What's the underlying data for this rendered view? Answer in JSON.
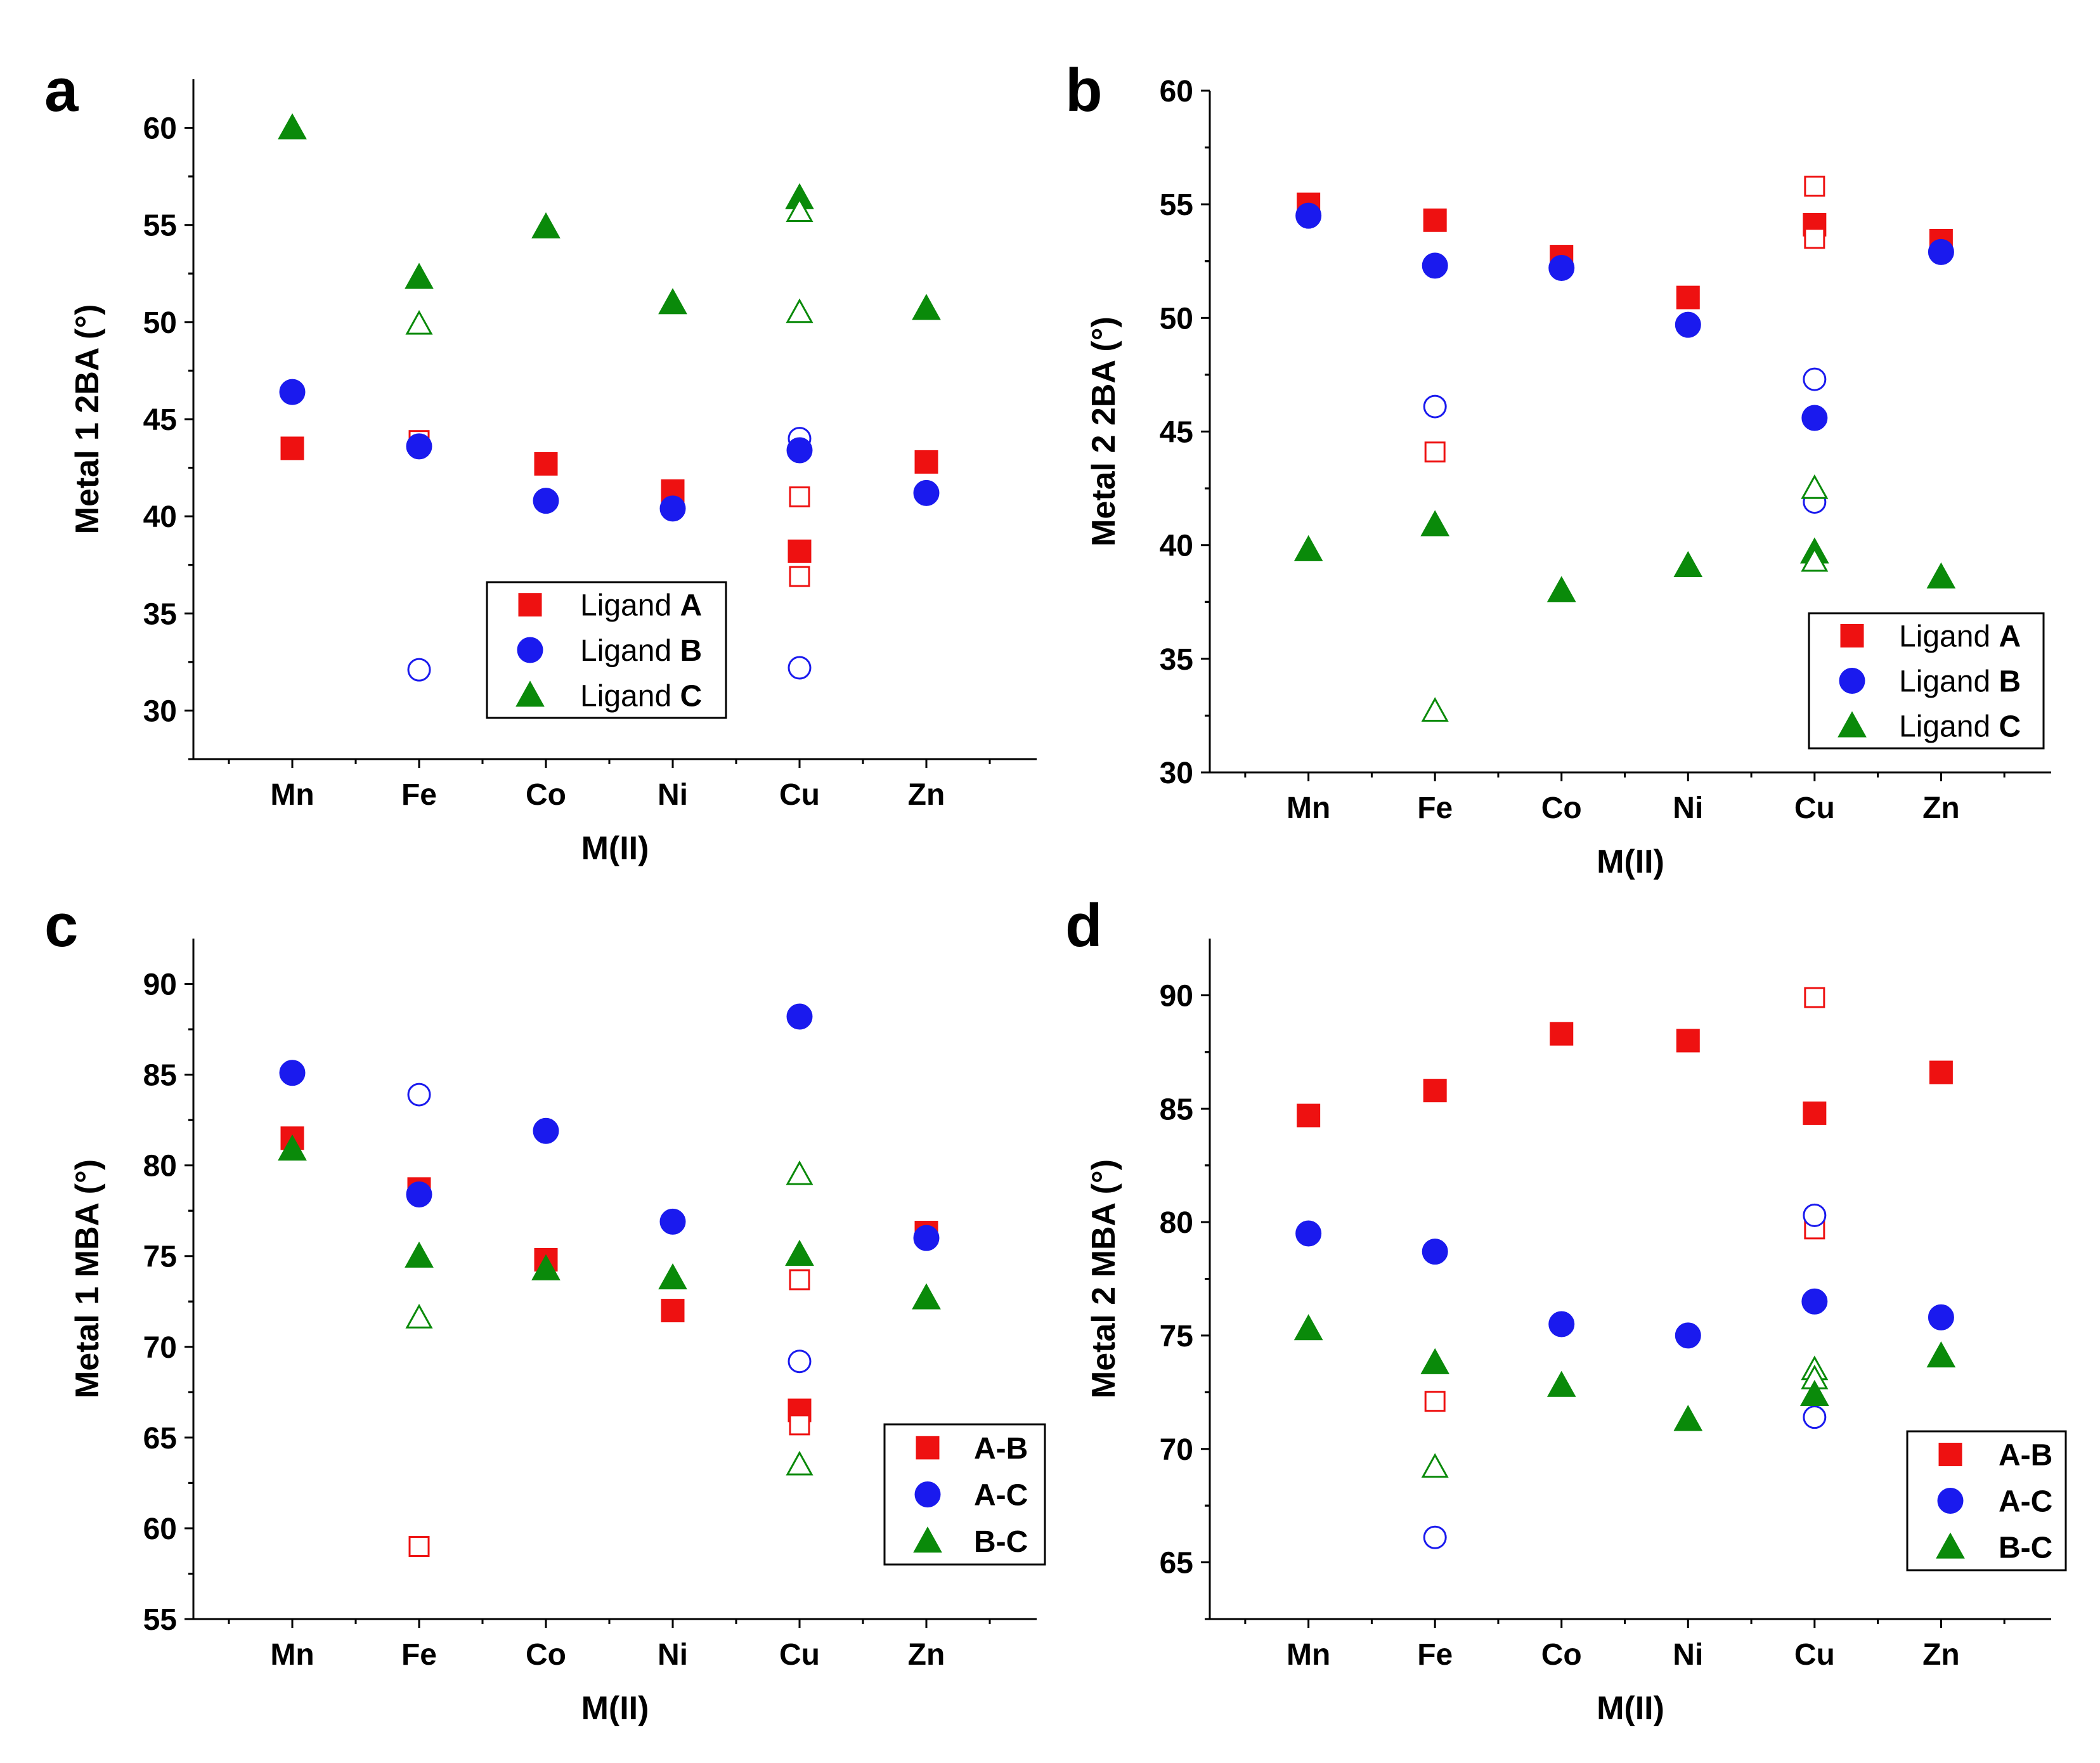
{
  "colors": {
    "red": "#ee1111",
    "blue": "#1a1aee",
    "green": "#0a8a0a"
  },
  "chart_data": [
    {
      "type": "scatter",
      "panel": "a",
      "title": "",
      "xlabel": "M(II)",
      "ylabel": "Metal 1 2BA (°)",
      "categories": [
        "Mn",
        "Fe",
        "Co",
        "Ni",
        "Cu",
        "Zn"
      ],
      "ylim": [
        27.5,
        62.5
      ],
      "yticks": [
        30,
        35,
        40,
        45,
        50,
        55,
        60
      ],
      "legend_position": "bottom-right",
      "series": [
        {
          "name": "Ligand A",
          "legend_prefix": "Ligand ",
          "legend_key": "A",
          "color": "#ee1111",
          "marker": "square",
          "points": [
            {
              "x": "Mn",
              "y": 43.5,
              "filled": true
            },
            {
              "x": "Fe",
              "y": 43.9,
              "filled": false
            },
            {
              "x": "Co",
              "y": 42.7,
              "filled": true
            },
            {
              "x": "Ni",
              "y": 41.3,
              "filled": true
            },
            {
              "x": "Cu",
              "y": 41.0,
              "filled": false
            },
            {
              "x": "Cu",
              "y": 38.2,
              "filled": true
            },
            {
              "x": "Cu",
              "y": 36.9,
              "filled": false
            },
            {
              "x": "Zn",
              "y": 42.8,
              "filled": true
            }
          ]
        },
        {
          "name": "Ligand B",
          "legend_prefix": "Ligand ",
          "legend_key": "B",
          "color": "#1a1aee",
          "marker": "circle",
          "points": [
            {
              "x": "Mn",
              "y": 46.4,
              "filled": true
            },
            {
              "x": "Fe",
              "y": 43.6,
              "filled": true
            },
            {
              "x": "Fe",
              "y": 32.1,
              "filled": false
            },
            {
              "x": "Co",
              "y": 40.8,
              "filled": true
            },
            {
              "x": "Ni",
              "y": 40.4,
              "filled": true
            },
            {
              "x": "Cu",
              "y": 44.0,
              "filled": false
            },
            {
              "x": "Cu",
              "y": 43.4,
              "filled": true
            },
            {
              "x": "Cu",
              "y": 32.2,
              "filled": false
            },
            {
              "x": "Zn",
              "y": 41.2,
              "filled": true
            }
          ]
        },
        {
          "name": "Ligand C",
          "legend_prefix": "Ligand ",
          "legend_key": "C",
          "color": "#0a8a0a",
          "marker": "triangle",
          "points": [
            {
              "x": "Mn",
              "y": 60.0,
              "filled": true
            },
            {
              "x": "Fe",
              "y": 52.3,
              "filled": true
            },
            {
              "x": "Fe",
              "y": 49.9,
              "filled": false
            },
            {
              "x": "Co",
              "y": 54.9,
              "filled": true
            },
            {
              "x": "Ni",
              "y": 51.0,
              "filled": true
            },
            {
              "x": "Cu",
              "y": 56.4,
              "filled": true
            },
            {
              "x": "Cu",
              "y": 55.7,
              "filled": false
            },
            {
              "x": "Cu",
              "y": 50.5,
              "filled": false
            },
            {
              "x": "Zn",
              "y": 50.7,
              "filled": true
            }
          ]
        }
      ]
    },
    {
      "type": "scatter",
      "panel": "b",
      "title": "",
      "xlabel": "M(II)",
      "ylabel": "Metal 2 2BA (°)",
      "categories": [
        "Mn",
        "Fe",
        "Co",
        "Ni",
        "Cu",
        "Zn"
      ],
      "ylim": [
        30,
        60
      ],
      "yticks": [
        30,
        35,
        40,
        45,
        50,
        55,
        60
      ],
      "legend_position": "bottom-right",
      "series": [
        {
          "name": "Ligand A",
          "legend_prefix": "Ligand ",
          "legend_key": "A",
          "color": "#ee1111",
          "marker": "square",
          "points": [
            {
              "x": "Mn",
              "y": 55.0,
              "filled": true
            },
            {
              "x": "Fe",
              "y": 54.3,
              "filled": true
            },
            {
              "x": "Fe",
              "y": 44.1,
              "filled": false
            },
            {
              "x": "Co",
              "y": 52.7,
              "filled": true
            },
            {
              "x": "Ni",
              "y": 50.9,
              "filled": true
            },
            {
              "x": "Cu",
              "y": 55.8,
              "filled": false
            },
            {
              "x": "Cu",
              "y": 54.1,
              "filled": true
            },
            {
              "x": "Cu",
              "y": 53.5,
              "filled": false
            },
            {
              "x": "Zn",
              "y": 53.4,
              "filled": true
            }
          ]
        },
        {
          "name": "Ligand B",
          "legend_prefix": "Ligand ",
          "legend_key": "B",
          "color": "#1a1aee",
          "marker": "circle",
          "points": [
            {
              "x": "Mn",
              "y": 54.5,
              "filled": true
            },
            {
              "x": "Fe",
              "y": 52.3,
              "filled": true
            },
            {
              "x": "Fe",
              "y": 46.1,
              "filled": false
            },
            {
              "x": "Co",
              "y": 52.2,
              "filled": true
            },
            {
              "x": "Ni",
              "y": 49.7,
              "filled": true
            },
            {
              "x": "Cu",
              "y": 47.3,
              "filled": false
            },
            {
              "x": "Cu",
              "y": 45.6,
              "filled": true
            },
            {
              "x": "Cu",
              "y": 41.9,
              "filled": false
            },
            {
              "x": "Zn",
              "y": 52.9,
              "filled": true
            }
          ]
        },
        {
          "name": "Ligand C",
          "legend_prefix": "Ligand ",
          "legend_key": "C",
          "color": "#0a8a0a",
          "marker": "triangle",
          "points": [
            {
              "x": "Mn",
              "y": 39.8,
              "filled": true
            },
            {
              "x": "Fe",
              "y": 40.9,
              "filled": true
            },
            {
              "x": "Fe",
              "y": 32.7,
              "filled": false
            },
            {
              "x": "Co",
              "y": 38.0,
              "filled": true
            },
            {
              "x": "Ni",
              "y": 39.1,
              "filled": true
            },
            {
              "x": "Cu",
              "y": 42.5,
              "filled": false
            },
            {
              "x": "Cu",
              "y": 39.7,
              "filled": true
            },
            {
              "x": "Cu",
              "y": 39.3,
              "filled": false
            },
            {
              "x": "Zn",
              "y": 38.6,
              "filled": true
            }
          ]
        }
      ]
    },
    {
      "type": "scatter",
      "panel": "c",
      "title": "",
      "xlabel": "M(II)",
      "ylabel": "Metal 1 MBA (°)",
      "categories": [
        "Mn",
        "Fe",
        "Co",
        "Ni",
        "Cu",
        "Zn"
      ],
      "ylim": [
        55,
        92.5
      ],
      "yticks": [
        55,
        60,
        65,
        70,
        75,
        80,
        85,
        90
      ],
      "legend_position": "bottom-right",
      "series": [
        {
          "name": "A-B",
          "legend_prefix": "",
          "legend_key": "A-B",
          "color": "#ee1111",
          "marker": "square",
          "points": [
            {
              "x": "Mn",
              "y": 81.5,
              "filled": true
            },
            {
              "x": "Fe",
              "y": 78.7,
              "filled": true
            },
            {
              "x": "Fe",
              "y": 59.0,
              "filled": false
            },
            {
              "x": "Co",
              "y": 74.8,
              "filled": true
            },
            {
              "x": "Ni",
              "y": 72.0,
              "filled": true
            },
            {
              "x": "Cu",
              "y": 73.7,
              "filled": false
            },
            {
              "x": "Cu",
              "y": 66.5,
              "filled": true
            },
            {
              "x": "Cu",
              "y": 65.7,
              "filled": false
            },
            {
              "x": "Zn",
              "y": 76.3,
              "filled": true
            }
          ]
        },
        {
          "name": "A-C",
          "legend_prefix": "",
          "legend_key": "A-C",
          "color": "#1a1aee",
          "marker": "circle",
          "points": [
            {
              "x": "Mn",
              "y": 85.1,
              "filled": true
            },
            {
              "x": "Fe",
              "y": 83.9,
              "filled": false
            },
            {
              "x": "Fe",
              "y": 78.4,
              "filled": true
            },
            {
              "x": "Co",
              "y": 81.9,
              "filled": true
            },
            {
              "x": "Ni",
              "y": 76.9,
              "filled": true
            },
            {
              "x": "Cu",
              "y": 88.2,
              "filled": true
            },
            {
              "x": "Cu",
              "y": 69.2,
              "filled": false
            },
            {
              "x": "Zn",
              "y": 76.0,
              "filled": true
            }
          ]
        },
        {
          "name": "B-C",
          "legend_prefix": "",
          "legend_key": "B-C",
          "color": "#0a8a0a",
          "marker": "triangle",
          "points": [
            {
              "x": "Mn",
              "y": 80.9,
              "filled": true
            },
            {
              "x": "Fe",
              "y": 75.0,
              "filled": true
            },
            {
              "x": "Fe",
              "y": 71.6,
              "filled": false
            },
            {
              "x": "Co",
              "y": 74.3,
              "filled": true
            },
            {
              "x": "Ni",
              "y": 73.8,
              "filled": true
            },
            {
              "x": "Cu",
              "y": 79.5,
              "filled": false
            },
            {
              "x": "Cu",
              "y": 75.1,
              "filled": true
            },
            {
              "x": "Cu",
              "y": 63.5,
              "filled": false
            },
            {
              "x": "Zn",
              "y": 72.7,
              "filled": true
            }
          ]
        }
      ]
    },
    {
      "type": "scatter",
      "panel": "d",
      "title": "",
      "xlabel": "M(II)",
      "ylabel": "Metal 2 MBA (°)",
      "categories": [
        "Mn",
        "Fe",
        "Co",
        "Ni",
        "Cu",
        "Zn"
      ],
      "ylim": [
        62.5,
        92.5
      ],
      "yticks": [
        65,
        70,
        75,
        80,
        85,
        90
      ],
      "legend_position": "bottom-right",
      "series": [
        {
          "name": "A-B",
          "legend_prefix": "",
          "legend_key": "A-B",
          "color": "#ee1111",
          "marker": "square",
          "points": [
            {
              "x": "Mn",
              "y": 84.7,
              "filled": true
            },
            {
              "x": "Fe",
              "y": 85.8,
              "filled": true
            },
            {
              "x": "Fe",
              "y": 72.1,
              "filled": false
            },
            {
              "x": "Co",
              "y": 88.3,
              "filled": true
            },
            {
              "x": "Ni",
              "y": 88.0,
              "filled": true
            },
            {
              "x": "Cu",
              "y": 89.9,
              "filled": false
            },
            {
              "x": "Cu",
              "y": 84.8,
              "filled": true
            },
            {
              "x": "Cu",
              "y": 79.7,
              "filled": false
            },
            {
              "x": "Zn",
              "y": 86.6,
              "filled": true
            }
          ]
        },
        {
          "name": "A-C",
          "legend_prefix": "",
          "legend_key": "A-C",
          "color": "#1a1aee",
          "marker": "circle",
          "points": [
            {
              "x": "Mn",
              "y": 79.5,
              "filled": true
            },
            {
              "x": "Fe",
              "y": 78.7,
              "filled": true
            },
            {
              "x": "Fe",
              "y": 66.1,
              "filled": false
            },
            {
              "x": "Co",
              "y": 75.5,
              "filled": true
            },
            {
              "x": "Ni",
              "y": 75.0,
              "filled": true
            },
            {
              "x": "Cu",
              "y": 80.3,
              "filled": false
            },
            {
              "x": "Cu",
              "y": 76.5,
              "filled": true
            },
            {
              "x": "Cu",
              "y": 71.4,
              "filled": false
            },
            {
              "x": "Zn",
              "y": 75.8,
              "filled": true
            }
          ]
        },
        {
          "name": "B-C",
          "legend_prefix": "",
          "legend_key": "B-C",
          "color": "#0a8a0a",
          "marker": "triangle",
          "points": [
            {
              "x": "Mn",
              "y": 75.3,
              "filled": true
            },
            {
              "x": "Fe",
              "y": 73.8,
              "filled": true
            },
            {
              "x": "Fe",
              "y": 69.2,
              "filled": false
            },
            {
              "x": "Co",
              "y": 72.8,
              "filled": true
            },
            {
              "x": "Ni",
              "y": 71.3,
              "filled": true
            },
            {
              "x": "Cu",
              "y": 73.5,
              "filled": false
            },
            {
              "x": "Cu",
              "y": 73.1,
              "filled": false
            },
            {
              "x": "Cu",
              "y": 72.4,
              "filled": true
            },
            {
              "x": "Zn",
              "y": 74.1,
              "filled": true
            }
          ]
        }
      ]
    }
  ]
}
